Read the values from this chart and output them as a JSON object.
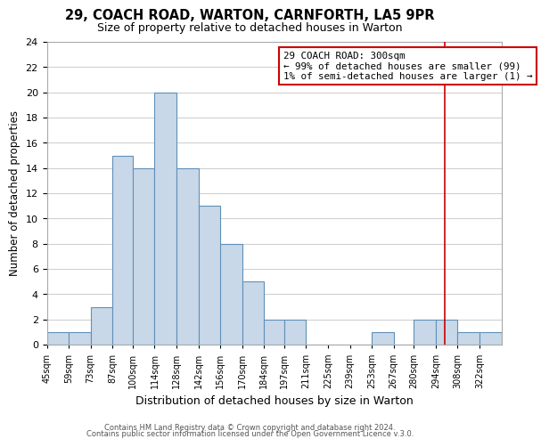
{
  "title": "29, COACH ROAD, WARTON, CARNFORTH, LA5 9PR",
  "subtitle": "Size of property relative to detached houses in Warton",
  "xlabel": "Distribution of detached houses by size in Warton",
  "ylabel": "Number of detached properties",
  "footer_lines": [
    "Contains HM Land Registry data © Crown copyright and database right 2024.",
    "Contains public sector information licensed under the Open Government Licence v.3.0."
  ],
  "bin_labels": [
    "45sqm",
    "59sqm",
    "73sqm",
    "87sqm",
    "100sqm",
    "114sqm",
    "128sqm",
    "142sqm",
    "156sqm",
    "170sqm",
    "184sqm",
    "197sqm",
    "211sqm",
    "225sqm",
    "239sqm",
    "253sqm",
    "267sqm",
    "280sqm",
    "294sqm",
    "308sqm",
    "322sqm"
  ],
  "bin_edges": [
    45,
    59,
    73,
    87,
    100,
    114,
    128,
    142,
    156,
    170,
    184,
    197,
    211,
    225,
    239,
    253,
    267,
    280,
    294,
    308,
    322
  ],
  "bar_heights": [
    1,
    1,
    3,
    15,
    14,
    20,
    14,
    11,
    8,
    5,
    2,
    2,
    0,
    0,
    0,
    1,
    0,
    2,
    2,
    1,
    1
  ],
  "bar_color": "#c8d8e8",
  "bar_edge_color": "#6090b8",
  "grid_color": "#d0d0d0",
  "property_line_x": 300,
  "property_line_color": "#cc0000",
  "annotation_box_text": "29 COACH ROAD: 300sqm\n← 99% of detached houses are smaller (99)\n1% of semi-detached houses are larger (1) →",
  "annotation_box_edge_color": "#cc0000",
  "ylim": [
    0,
    24
  ],
  "yticks": [
    0,
    2,
    4,
    6,
    8,
    10,
    12,
    14,
    16,
    18,
    20,
    22,
    24
  ]
}
